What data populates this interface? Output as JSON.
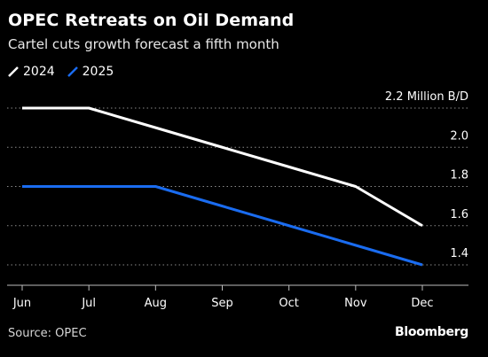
{
  "title": "OPEC Retreats on Oil Demand",
  "subtitle": "Cartel cuts growth forecast a fifth month",
  "source": "Source: OPEC",
  "brand": "Bloomberg",
  "colors": {
    "background": "#000000",
    "series_2024": "#ffffff",
    "series_2025": "#1a6cf0",
    "grid": "#8a8a8a"
  },
  "chart_data": {
    "type": "line",
    "title": "OPEC Retreats on Oil Demand",
    "subtitle": "Cartel cuts growth forecast a fifth month",
    "x": [
      "Jun",
      "Jul",
      "Aug",
      "Sep",
      "Oct",
      "Nov",
      "Dec"
    ],
    "series": [
      {
        "name": "2024",
        "values": [
          2.2,
          2.2,
          2.1,
          2.0,
          1.9,
          1.8,
          1.6
        ]
      },
      {
        "name": "2025",
        "values": [
          1.8,
          1.8,
          1.8,
          1.7,
          1.6,
          1.5,
          1.4
        ]
      }
    ],
    "yticks": [
      "2.2 Million B/D",
      "2.0",
      "1.8",
      "1.6",
      "1.4"
    ],
    "ytick_values": [
      2.2,
      2.0,
      1.8,
      1.6,
      1.4
    ],
    "ylim": [
      1.3,
      2.2
    ],
    "grid": "horizontal dotted",
    "legend": "top-left"
  }
}
